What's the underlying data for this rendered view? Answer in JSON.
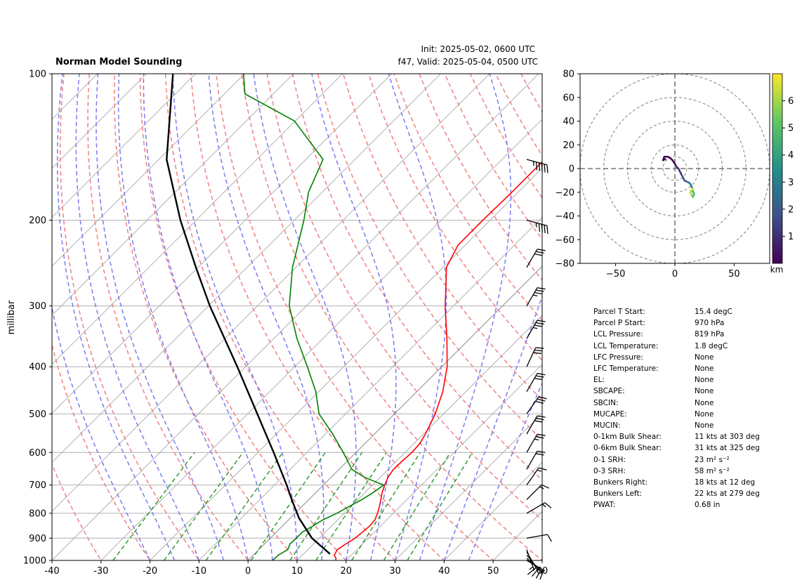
{
  "header": {
    "title": "Norman Model Sounding",
    "init": "Init: 2025-05-02, 0600 UTC",
    "valid": "f47, Valid: 2025-05-04, 0500 UTC"
  },
  "colors": {
    "temperature": "#ff0000",
    "dewpoint": "#008000",
    "parcel": "#000000",
    "dry_adiabat": "#f08080",
    "moist_adiabat": "#7b7bf0",
    "mixing_ratio": "#2e9b2e",
    "isotherm_grid": "#b0b0b0",
    "freezing_line": "#7e3fc4"
  },
  "chart_data": [
    {
      "type": "line",
      "chart": "skew-t log-p",
      "ylabel": "millibar",
      "xlabel": "",
      "y_scale": "log (reversed)",
      "xlim": [
        -40,
        60
      ],
      "ylim": [
        1000,
        100
      ],
      "xticks": [
        "-40",
        "-30",
        "-20",
        "-10",
        "0",
        "10",
        "20",
        "30",
        "40",
        "50",
        "60"
      ],
      "yticks": [
        "100",
        "200",
        "300",
        "400",
        "500",
        "600",
        "700",
        "800",
        "900",
        "1000"
      ],
      "grid": true,
      "series": [
        {
          "key": "temperature",
          "points": [
            [
              1000,
              17.9
            ],
            [
              990,
              17.5
            ],
            [
              975,
              16.5
            ],
            [
              950,
              16.0
            ],
            [
              925,
              16.6
            ],
            [
              900,
              17.3
            ],
            [
              850,
              17.8
            ],
            [
              825,
              17.6
            ],
            [
              800,
              16.8
            ],
            [
              775,
              15.8
            ],
            [
              750,
              14.7
            ],
            [
              725,
              13.5
            ],
            [
              700,
              12.5
            ],
            [
              675,
              11.6
            ],
            [
              650,
              11.1
            ],
            [
              625,
              11.2
            ],
            [
              600,
              11.4
            ],
            [
              575,
              11.2
            ],
            [
              550,
              10.4
            ],
            [
              500,
              8.3
            ],
            [
              450,
              5.3
            ],
            [
              400,
              1.1
            ],
            [
              350,
              -4.7
            ],
            [
              300,
              -11.7
            ],
            [
              275,
              -15.3
            ],
            [
              250,
              -19.3
            ],
            [
              225,
              -21.5
            ],
            [
              200,
              -21.5
            ],
            [
              175,
              -21.3
            ],
            [
              150,
              -21.3
            ],
            [
              125,
              -21.1
            ],
            [
              100,
              -20.9
            ]
          ]
        },
        {
          "key": "dewpoint",
          "points": [
            [
              1000,
              5.0
            ],
            [
              975,
              5.1
            ],
            [
              950,
              5.9
            ],
            [
              925,
              5.2
            ],
            [
              900,
              5.3
            ],
            [
              875,
              5.3
            ],
            [
              850,
              6.2
            ],
            [
              825,
              7.0
            ],
            [
              800,
              8.5
            ],
            [
              775,
              9.6
            ],
            [
              750,
              10.8
            ],
            [
              725,
              11.7
            ],
            [
              700,
              12.3
            ],
            [
              675,
              6.8
            ],
            [
              650,
              2.6
            ],
            [
              600,
              -2.6
            ],
            [
              550,
              -8.5
            ],
            [
              500,
              -15.4
            ],
            [
              450,
              -20.6
            ],
            [
              400,
              -27.4
            ],
            [
              350,
              -35.3
            ],
            [
              300,
              -43.5
            ],
            [
              250,
              -50.7
            ],
            [
              200,
              -58.0
            ],
            [
              175,
              -62.8
            ],
            [
              150,
              -66.5
            ],
            [
              125,
              -80.2
            ],
            [
              110,
              -95.8
            ],
            [
              100,
              -100.2
            ]
          ]
        },
        {
          "key": "parcel",
          "points": [
            [
              970,
              15.4
            ],
            [
              900,
              8.5
            ],
            [
              819,
              1.8
            ],
            [
              750,
              -3.5
            ],
            [
              700,
              -7.5
            ],
            [
              600,
              -16.8
            ],
            [
              500,
              -28.0
            ],
            [
              400,
              -41.7
            ],
            [
              300,
              -59.7
            ],
            [
              250,
              -70.4
            ],
            [
              200,
              -83.2
            ],
            [
              150,
              -98.4
            ],
            [
              100,
              -114.6
            ]
          ]
        }
      ],
      "wind_barbs": [
        {
          "p": 1000,
          "speed": 5,
          "dir": 120
        },
        {
          "p": 990,
          "speed": 10,
          "dir": 130
        },
        {
          "p": 975,
          "speed": 12,
          "dir": 140
        },
        {
          "p": 960,
          "speed": 15,
          "dir": 150
        },
        {
          "p": 950,
          "speed": 18,
          "dir": 160
        },
        {
          "p": 900,
          "speed": 10,
          "dir": 80
        },
        {
          "p": 800,
          "speed": 15,
          "dir": 60
        },
        {
          "p": 750,
          "speed": 15,
          "dir": 45
        },
        {
          "p": 700,
          "speed": 15,
          "dir": 35
        },
        {
          "p": 650,
          "speed": 20,
          "dir": 30
        },
        {
          "p": 600,
          "speed": 25,
          "dir": 30
        },
        {
          "p": 550,
          "speed": 30,
          "dir": 30
        },
        {
          "p": 500,
          "speed": 30,
          "dir": 35
        },
        {
          "p": 450,
          "speed": 30,
          "dir": 30
        },
        {
          "p": 400,
          "speed": 30,
          "dir": 25
        },
        {
          "p": 350,
          "speed": 35,
          "dir": 30
        },
        {
          "p": 300,
          "speed": 35,
          "dir": 30
        },
        {
          "p": 250,
          "speed": 30,
          "dir": 30
        },
        {
          "p": 200,
          "speed": 45,
          "dir": 105
        },
        {
          "p": 150,
          "speed": 55,
          "dir": 105
        }
      ]
    },
    {
      "type": "line",
      "chart": "hodograph",
      "xlim": [
        -80,
        80
      ],
      "ylim": [
        -80,
        80
      ],
      "xticks": [
        "−50",
        "0",
        "50"
      ],
      "yticks": [
        "80",
        "60",
        "40",
        "20",
        "0",
        "−20",
        "−40",
        "−60",
        "−80"
      ],
      "rings": [
        10,
        20,
        40,
        60,
        80
      ],
      "colorbar": {
        "label": "km",
        "range": [
          0,
          7
        ],
        "ticks": [
          "1",
          "2",
          "3",
          "4",
          "5",
          "6"
        ]
      },
      "points": [
        [
          -8,
          8,
          0.0
        ],
        [
          -10,
          7,
          0.1
        ],
        [
          -9,
          10,
          0.2
        ],
        [
          -6,
          10,
          0.3
        ],
        [
          -4,
          9,
          0.4
        ],
        [
          -2,
          7,
          0.5
        ],
        [
          0,
          4,
          0.6
        ],
        [
          1,
          2,
          0.7
        ],
        [
          2,
          1,
          0.8
        ],
        [
          3,
          0,
          0.9
        ],
        [
          4,
          -2,
          1.0
        ],
        [
          5,
          -4,
          1.2
        ],
        [
          6,
          -6,
          1.4
        ],
        [
          7,
          -8,
          1.6
        ],
        [
          8,
          -10,
          1.8
        ],
        [
          10,
          -11,
          2.0
        ],
        [
          12,
          -12,
          2.3
        ],
        [
          13,
          -13,
          2.6
        ],
        [
          14,
          -15,
          3.0
        ],
        [
          15,
          -17,
          3.4
        ],
        [
          15,
          -19,
          3.8
        ],
        [
          16,
          -21,
          4.2
        ],
        [
          16,
          -23,
          4.6
        ],
        [
          15,
          -24,
          5.0
        ],
        [
          14,
          -22,
          5.4
        ],
        [
          13,
          -20,
          5.8
        ],
        [
          14,
          -18,
          6.2
        ],
        [
          15,
          -17,
          6.6
        ]
      ]
    }
  ],
  "params": [
    {
      "label": "Parcel T Start:",
      "value": "15.4 degC"
    },
    {
      "label": "Parcel P Start:",
      "value": "970 hPa"
    },
    {
      "label": "LCL Pressure:",
      "value": "819 hPa"
    },
    {
      "label": "LCL Temperature:",
      "value": "1.8 degC"
    },
    {
      "label": "LFC Pressure:",
      "value": "None"
    },
    {
      "label": "LFC Temperature:",
      "value": "None"
    },
    {
      "label": "EL:",
      "value": "None"
    },
    {
      "label": "SBCAPE:",
      "value": "None"
    },
    {
      "label": "SBCIN:",
      "value": "None"
    },
    {
      "label": "MUCAPE:",
      "value": "None"
    },
    {
      "label": "MUCIN:",
      "value": "None"
    },
    {
      "label": "0-1km Bulk Shear:",
      "value": "11 kts at 303 deg"
    },
    {
      "label": "0-6km Bulk Shear:",
      "value": "31 kts at 325 deg"
    },
    {
      "label": "0-1 SRH:",
      "value": "23 m² s⁻²"
    },
    {
      "label": "0-3 SRH:",
      "value": "58 m² s⁻²"
    },
    {
      "label": "Bunkers Right:",
      "value": "18 kts at 12 deg"
    },
    {
      "label": "Bunkers Left:",
      "value": "22 kts at 279 deg"
    },
    {
      "label": "PWAT:",
      "value": "0.68 in"
    }
  ]
}
